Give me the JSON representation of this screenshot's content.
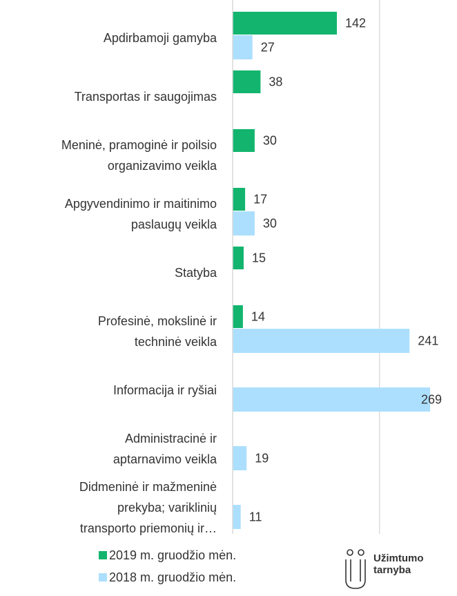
{
  "chart_data": {
    "type": "bar",
    "orientation": "horizontal",
    "categories": [
      "Apdirbamoji gamyba",
      "Transportas ir saugojimas",
      "Meninė, pramoginė ir poilsio\norganizavimo veikla",
      "Apgyvendinimo ir maitinimo\npaslaugų veikla",
      "Statyba",
      "Profesinė, mokslinė ir\ntechninė veikla",
      "Informacija ir ryšiai",
      "Administracinė ir\naptarnavimo veikla",
      "Didmeninė ir mažmeninė\nprekyba; variklinių\ntransporto priemonių ir…"
    ],
    "series": [
      {
        "name": "2019 m. gruodžio mėn.",
        "color": "#13b56e",
        "values": [
          142,
          38,
          30,
          17,
          15,
          14,
          null,
          null,
          null
        ]
      },
      {
        "name": "2018 m. gruodžio mėn.",
        "color": "#acdffd",
        "values": [
          27,
          null,
          null,
          30,
          null,
          241,
          269,
          19,
          11
        ]
      }
    ],
    "xlim": [
      0,
      300
    ],
    "xticks": [
      0,
      200
    ],
    "grid": true,
    "legend": "bottom"
  },
  "logo": {
    "text": [
      "Užimtumo",
      "tarnyba"
    ]
  }
}
